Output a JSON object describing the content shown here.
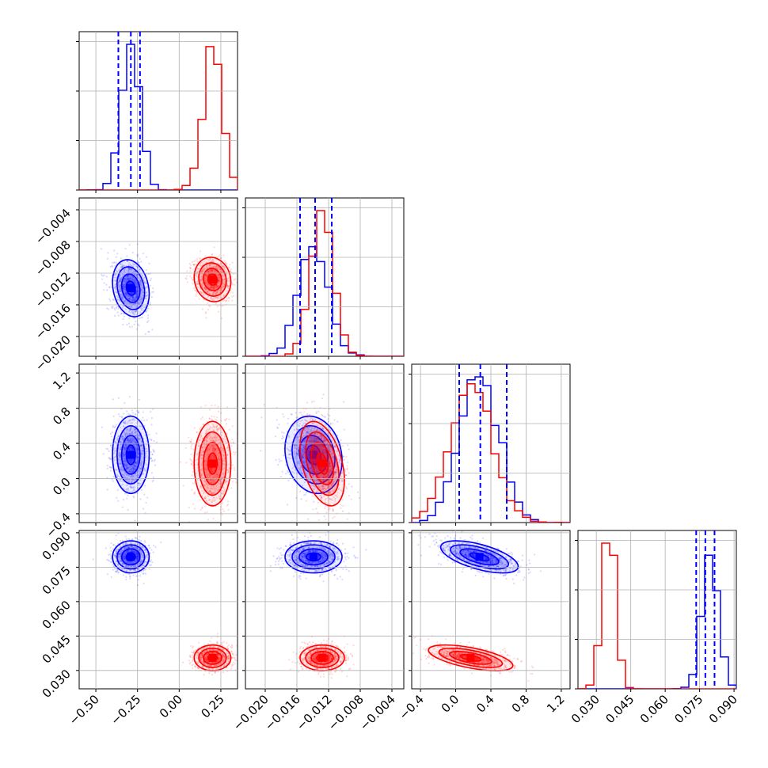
{
  "chart_data": {
    "type": "corner",
    "grid": true,
    "colors": {
      "blue": "#0000ff",
      "red": "#ff0000",
      "grid": "#b0b0b0"
    },
    "n_params": 4,
    "ranges": [
      [
        -0.6,
        0.35
      ],
      [
        -0.0225,
        -0.0025
      ],
      [
        -0.5,
        1.3
      ],
      [
        0.022,
        0.091
      ]
    ],
    "ticks": [
      [
        "−0.50",
        "−0.25",
        "0.00",
        "0.25"
      ],
      [
        "−0.020",
        "−0.016",
        "−0.012",
        "−0.008",
        "−0.004"
      ],
      [
        "−0.4",
        "0.0",
        "0.4",
        "0.8",
        "1.2"
      ],
      [
        "0.030",
        "0.045",
        "0.060",
        "0.075",
        "0.090"
      ]
    ],
    "tick_values": [
      [
        -0.5,
        -0.25,
        0.0,
        0.25
      ],
      [
        -0.02,
        -0.016,
        -0.012,
        -0.008,
        -0.004
      ],
      [
        -0.4,
        0.0,
        0.4,
        0.8,
        1.2
      ],
      [
        0.03,
        0.045,
        0.06,
        0.075,
        0.09
      ]
    ],
    "series": [
      {
        "color": "#0000ff",
        "mean": [
          -0.29,
          -0.0139,
          0.27,
          0.0795
        ],
        "sd": [
          0.055,
          0.0018,
          0.22,
          0.0035
        ],
        "quantile_lines": [
          [
            -0.365,
            -0.29,
            -0.235
          ],
          [
            -0.0156,
            -0.0137,
            -0.0116
          ],
          [
            0.04,
            0.28,
            0.58
          ],
          [
            0.0735,
            0.0775,
            0.0815
          ]
        ],
        "corr": [
          [
            0,
            1,
            2
          ],
          [
            3,
            4,
            5
          ]
        ]
      },
      {
        "color": "#ff0000",
        "mean": [
          0.2,
          -0.0128,
          0.17,
          0.0355
        ],
        "sd": [
          0.055,
          0.0014,
          0.24,
          0.0028
        ],
        "corr": [
          [
            0,
            1,
            2
          ],
          [
            3,
            4,
            5
          ]
        ]
      }
    ],
    "correlations": {
      "blue": {
        "0-1": -0.2,
        "0-2": 0.0,
        "0-3": 0.0,
        "1-2": -0.15,
        "1-3": 0.0,
        "2-3": -0.6
      },
      "red": {
        "0-1": -0.1,
        "0-2": 0.0,
        "0-3": 0.0,
        "1-2": -0.4,
        "1-3": 0.0,
        "2-3": -0.6
      }
    }
  }
}
